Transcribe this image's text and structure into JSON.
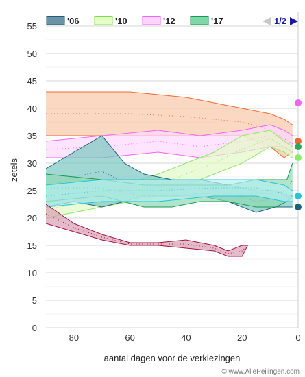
{
  "chart_data": {
    "type": "area",
    "ylabel": "zetels",
    "xlabel": "aantal dagen voor de verkiezingen",
    "xlim": [
      90,
      0
    ],
    "ylim": [
      0,
      55
    ],
    "x_ticks": [
      80,
      60,
      40,
      20,
      0
    ],
    "y_ticks": [
      0,
      5,
      10,
      15,
      20,
      25,
      30,
      35,
      40,
      45,
      50,
      55
    ],
    "grid": "horizontal",
    "legend": [
      {
        "label": "'06",
        "fill": "#6b93a6",
        "stroke": "#1f5f78"
      },
      {
        "label": "'10",
        "fill": "#e6ffc8",
        "stroke": "#7be04a"
      },
      {
        "label": "'12",
        "fill": "#ffd5ff",
        "stroke": "#ee66ee"
      },
      {
        "label": "'17",
        "fill": "#7fd6a6",
        "stroke": "#159a4f"
      }
    ],
    "pager": {
      "text": "1/2"
    },
    "credit": "© www.AllePeilingen.com",
    "bands": [
      {
        "party": "orange",
        "fill": "#f9c7a7",
        "stroke": "#ef6a33",
        "x": [
          90,
          60,
          40,
          20,
          10,
          5,
          2
        ],
        "hi": [
          43,
          43,
          42,
          40,
          39,
          38,
          37
        ],
        "lo": [
          35,
          35,
          35,
          35,
          33,
          31,
          32
        ]
      },
      {
        "party": "pink",
        "fill": "#ffd9ff",
        "stroke": "#ee66ee",
        "x": [
          90,
          70,
          50,
          35,
          20,
          10,
          5,
          2
        ],
        "hi": [
          34,
          35,
          36,
          35,
          36,
          37,
          36,
          35
        ],
        "lo": [
          31,
          31,
          32,
          31,
          32,
          33,
          33,
          32
        ]
      },
      {
        "party": "lightgreen",
        "fill": "#e2f8c6",
        "stroke": "#8ee86a",
        "x": [
          90,
          70,
          50,
          40,
          30,
          20,
          10,
          5,
          2
        ],
        "hi": [
          23,
          25,
          28,
          30,
          32,
          35,
          36,
          34,
          33
        ],
        "lo": [
          20,
          22,
          24,
          26,
          28,
          30,
          33,
          32,
          31
        ]
      },
      {
        "party": "teal",
        "fill": "#79c8c0",
        "stroke": "#1f5f78",
        "x": [
          90,
          80,
          70,
          62,
          55,
          45,
          35,
          25,
          15,
          8,
          4,
          2
        ],
        "hi": [
          29,
          32,
          35,
          30,
          28,
          27,
          27,
          26,
          25,
          25,
          24,
          24
        ],
        "lo": [
          22,
          23,
          22,
          23,
          24,
          24,
          24,
          23,
          21,
          22,
          22,
          22
        ]
      },
      {
        "party": "green",
        "fill": "#8ed9b5",
        "stroke": "#159a4f",
        "x": [
          90,
          70,
          55,
          45,
          35,
          25,
          15,
          8,
          4,
          2
        ],
        "hi": [
          28,
          27,
          26,
          26,
          26,
          26,
          27,
          27,
          27,
          30
        ],
        "lo": [
          23,
          24,
          22,
          22,
          23,
          23,
          22,
          22,
          23,
          24
        ]
      },
      {
        "party": "cyan",
        "fill": "#b5f0f0",
        "stroke": "#22c6d4",
        "x": [
          90,
          70,
          50,
          30,
          15,
          5,
          2
        ],
        "hi": [
          26,
          27,
          27,
          27,
          27,
          26,
          25
        ],
        "lo": [
          22,
          23,
          23,
          24,
          24,
          23,
          23
        ]
      },
      {
        "party": "crimson",
        "fill": "#d8a0b2",
        "stroke": "#a3123f",
        "x": [
          90,
          80,
          70,
          60,
          50,
          40,
          30,
          25,
          20,
          18
        ],
        "hi": [
          22.5,
          19,
          17,
          15.5,
          15.5,
          16,
          15,
          14,
          15,
          15
        ],
        "lo": [
          19,
          17.5,
          16,
          15,
          15,
          14.5,
          14,
          13,
          13,
          15
        ]
      }
    ],
    "endpoints": [
      {
        "value": 41,
        "color": "#ee66ee"
      },
      {
        "value": 34,
        "color": "#ef6a33"
      },
      {
        "value": 33,
        "color": "#2aa85a"
      },
      {
        "value": 31,
        "color": "#8ee86a"
      },
      {
        "value": 24,
        "color": "#22c6d4"
      },
      {
        "value": 22,
        "color": "#1f5f78"
      }
    ]
  }
}
